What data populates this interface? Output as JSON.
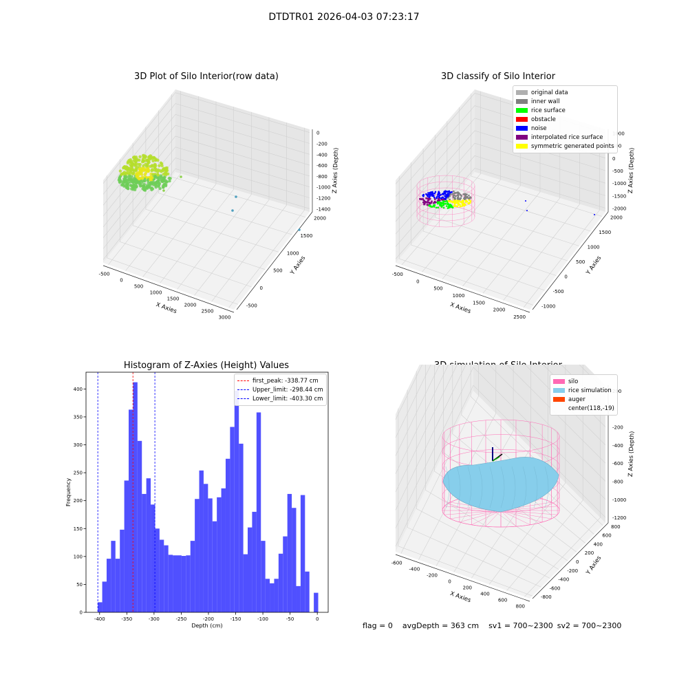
{
  "suptitle": "DTDTR01 2026-04-03 07:23:17",
  "panels": {
    "raw": {
      "title": "3D Plot of Silo Interior(row data)",
      "xlabel": "X Axies",
      "ylabel": "Y Axies",
      "zlabel": "Z Axies (Depth)",
      "xticks": [
        "-500",
        "0",
        "500",
        "1000",
        "1500",
        "2000",
        "2500",
        "3000"
      ],
      "yticks": [
        "-500",
        "0",
        "500",
        "1000",
        "1500",
        "2000"
      ],
      "zticks": [
        "0",
        "-200",
        "-400",
        "-600",
        "-800",
        "-1000",
        "-1200",
        "-1400"
      ]
    },
    "classify": {
      "title": "3D classify of Silo Interior",
      "xlabel": "X Axies",
      "ylabel": "Y Axies",
      "zlabel": "Z Axies (Depth)",
      "xticks": [
        "-500",
        "0",
        "500",
        "1000",
        "1500",
        "2000",
        "2500"
      ],
      "yticks": [
        "-1000",
        "-500",
        "0",
        "500",
        "1000",
        "1500",
        "2000"
      ],
      "zticks": [
        "1000",
        "500",
        "0",
        "-500",
        "-1000",
        "-1500",
        "-2000"
      ],
      "legend": [
        {
          "label": "original data",
          "color": "#b0b0b0"
        },
        {
          "label": "inner wall",
          "color": "#808080"
        },
        {
          "label": "rice surface",
          "color": "#00ff00"
        },
        {
          "label": "obstacle",
          "color": "#ff0000"
        },
        {
          "label": "noise",
          "color": "#0000ff"
        },
        {
          "label": "interpolated rice surface",
          "color": "#800080"
        },
        {
          "label": "symmetric generated points",
          "color": "#ffff00"
        }
      ]
    },
    "histogram": {
      "title": "Histogram of Z-Axies (Height) Values",
      "legend": [
        {
          "label": "first_peak: -338.77 cm",
          "color": "#ff0000"
        },
        {
          "label": "Upper_limit: -298.44 cm",
          "color": "#0000ff"
        },
        {
          "label": "Lower_limit: -403.30 cm",
          "color": "#0000ff"
        }
      ]
    },
    "simulation": {
      "title": "3D simulation of Silo Interior",
      "xlabel": "X Axies",
      "ylabel": "Y Axies",
      "zlabel": "Z Axies (Depth)",
      "xticks": [
        "-600",
        "-400",
        "-200",
        "0",
        "200",
        "400",
        "600",
        "800"
      ],
      "yticks": [
        "-800",
        "-600",
        "-400",
        "-200",
        "0",
        "200",
        "400",
        "600",
        "800"
      ],
      "zticks": [
        "200",
        "0",
        "-200",
        "-400",
        "-600",
        "-800",
        "-1000",
        "-1200"
      ],
      "legend": [
        {
          "label": "silo",
          "color": "#ff69b4"
        },
        {
          "label": "rice simulation",
          "color": "#87ceeb"
        },
        {
          "label": "auger",
          "color": "#ff4500"
        },
        {
          "label": "center(118,-19)",
          "color": ""
        }
      ]
    }
  },
  "footer": {
    "flag": "flag = 0",
    "avg_depth": "avgDepth = 363 cm",
    "sv1": "sv1 = 700~2300",
    "sv2": "sv2 = 700~2300"
  },
  "chart_data": {
    "type": "bar",
    "title": "Histogram of Z-Axies (Height) Values",
    "xlabel": "Depth (cm)",
    "ylabel": "Frequency",
    "xlim": [
      -425,
      20
    ],
    "ylim": [
      0,
      430
    ],
    "xticks": [
      -400,
      -350,
      -300,
      -250,
      -200,
      -150,
      -100,
      -50,
      0
    ],
    "yticks": [
      0,
      50,
      100,
      150,
      200,
      250,
      300,
      350,
      400
    ],
    "bin_edges": [
      -403.3,
      -395.2,
      -387.1,
      -379.0,
      -370.9,
      -362.8,
      -354.7,
      -346.6,
      -338.5,
      -330.4,
      -322.3,
      -314.2,
      -306.1,
      -298.0,
      -289.9,
      -281.8,
      -273.7,
      -265.6,
      -257.5,
      -249.4,
      -241.3,
      -233.2,
      -225.1,
      -217.0,
      -208.9,
      -200.8,
      -192.7,
      -184.6,
      -176.5,
      -168.4,
      -160.3,
      -152.2,
      -144.1,
      -136.0,
      -127.9,
      -119.8,
      -111.7,
      -103.6,
      -95.5,
      -87.4,
      -79.3,
      -71.2,
      -63.1,
      -55.0,
      -46.9,
      -38.8,
      -30.7,
      -22.6,
      -14.5,
      -6.4,
      1.7
    ],
    "values": [
      18,
      55,
      96,
      128,
      96,
      148,
      236,
      363,
      412,
      307,
      212,
      240,
      193,
      150,
      130,
      120,
      103,
      102,
      102,
      101,
      102,
      128,
      203,
      254,
      230,
      204,
      163,
      206,
      222,
      275,
      332,
      397,
      302,
      104,
      152,
      180,
      358,
      128,
      60,
      52,
      60,
      105,
      136,
      212,
      187,
      47,
      210,
      73,
      0,
      35
    ],
    "vlines": [
      {
        "name": "first_peak",
        "x": -338.77,
        "color": "#ff0000"
      },
      {
        "name": "Upper_limit",
        "x": -298.44,
        "color": "#0000ff"
      },
      {
        "name": "Lower_limit",
        "x": -403.3,
        "color": "#0000ff"
      }
    ],
    "bar_color": "#5050ff"
  }
}
